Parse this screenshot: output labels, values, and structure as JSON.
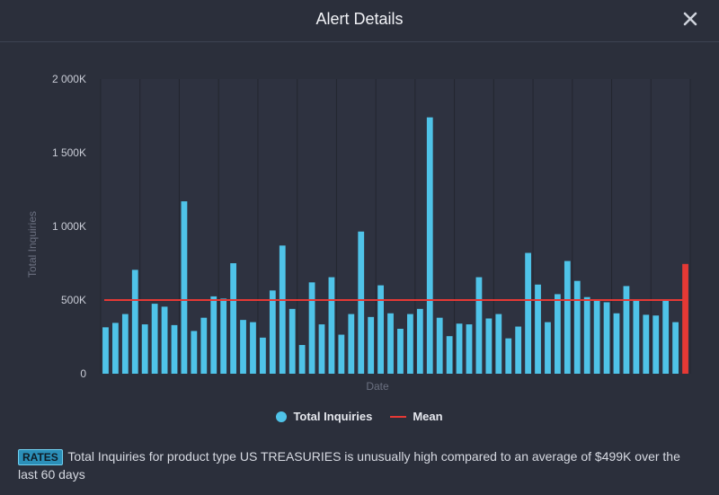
{
  "dialog": {
    "title": "Alert Details",
    "close_icon": "close-icon"
  },
  "colors": {
    "background": "#2b2f3b",
    "bar": "#4fc3e8",
    "mean": "#e53935",
    "badge": "#2b8fb8"
  },
  "chart_data": {
    "type": "bar",
    "xlabel": "Date",
    "ylabel": "Total Inquiries",
    "ylim": [
      0,
      2000
    ],
    "yticks": [
      "0",
      "500K",
      "1 000K",
      "1 500K",
      "2 000K"
    ],
    "series": [
      {
        "name": "Total Inquiries",
        "values": [
          315,
          345,
          405,
          705,
          335,
          475,
          455,
          330,
          1170,
          290,
          380,
          525,
          510,
          750,
          365,
          350,
          245,
          565,
          870,
          440,
          195,
          620,
          335,
          655,
          265,
          405,
          965,
          385,
          600,
          410,
          305,
          405,
          440,
          1740,
          380,
          255,
          340,
          335,
          655,
          375,
          405,
          240,
          320,
          820,
          605,
          350,
          540,
          765,
          630,
          520,
          505,
          485,
          410,
          595,
          505,
          400,
          395,
          500,
          350
        ],
        "highlight": {
          "value": 745,
          "note": "last bar, red"
        }
      }
    ],
    "mean": 500,
    "legend": [
      "Total Inquiries",
      "Mean"
    ],
    "grid": true,
    "legend_position": "bottom"
  },
  "message": {
    "badge": "RATES",
    "text": "Total Inquiries for product type US TREASURIES is unusually high compared to an average of $499K over the last 60 days"
  }
}
